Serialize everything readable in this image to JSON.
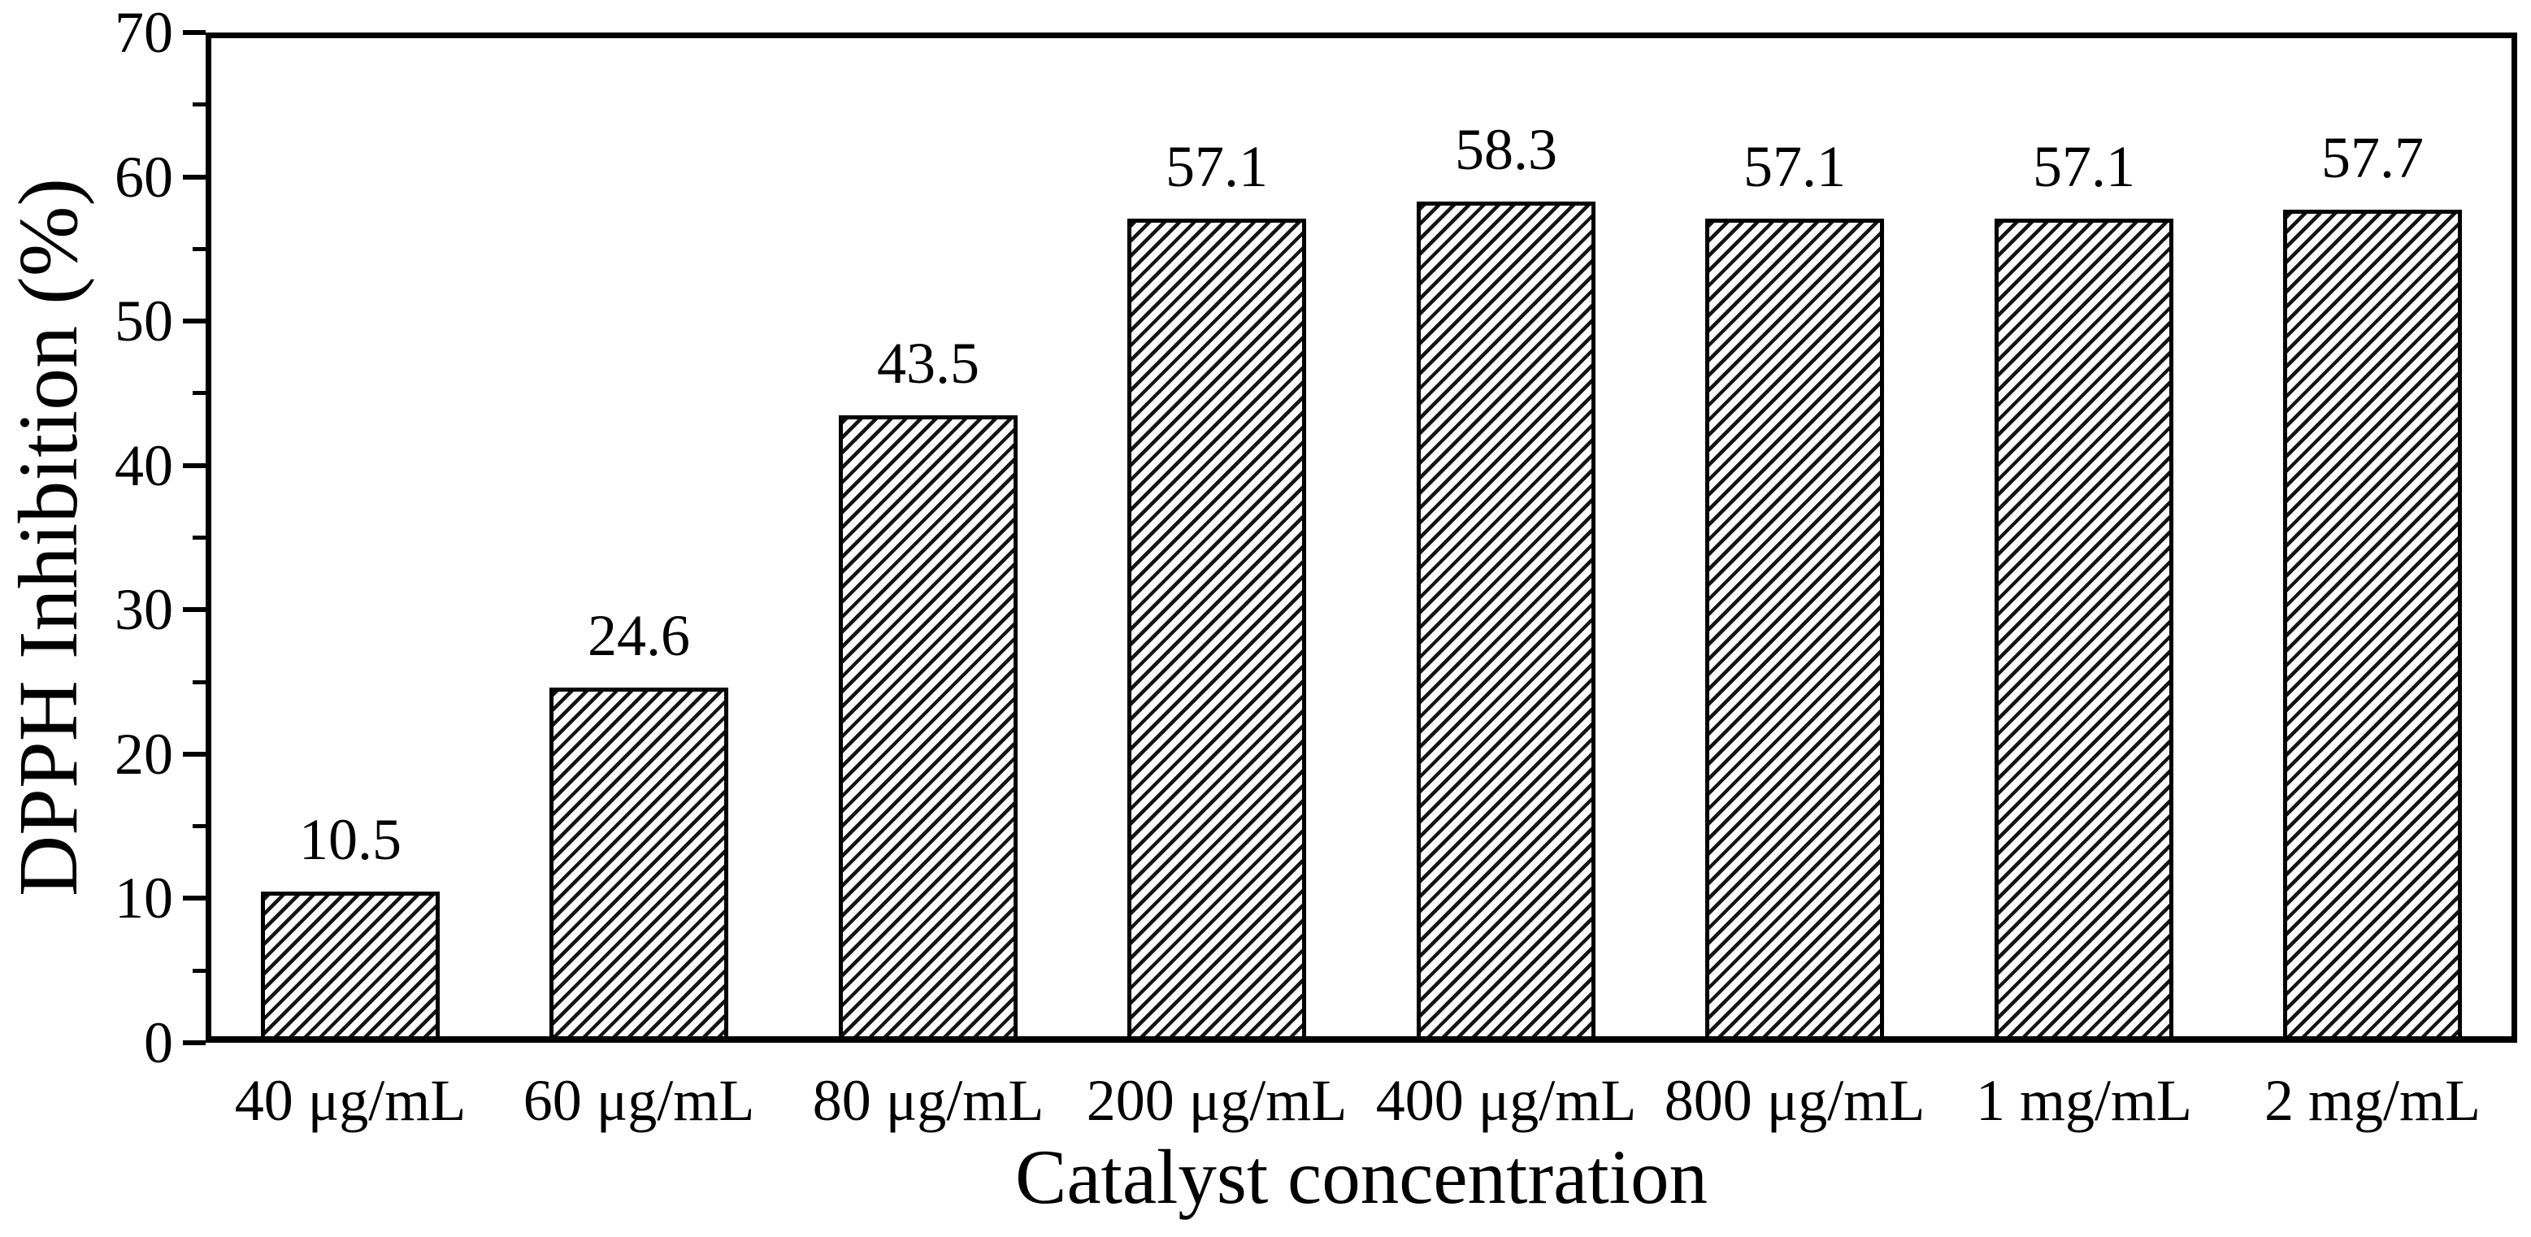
{
  "chart_data": {
    "type": "bar",
    "title": "",
    "xlabel": "Catalyst concentration",
    "ylabel": "DPPH Inhibition (%)",
    "categories": [
      "40 μg/mL",
      "60 μg/mL",
      "80 μg/mL",
      "200 μg/mL",
      "400 μg/mL",
      "800 μg/mL",
      "1 mg/mL",
      "2 mg/mL"
    ],
    "values": [
      10.5,
      24.6,
      43.5,
      57.1,
      58.3,
      57.1,
      57.1,
      57.7
    ],
    "value_labels": [
      "10.5",
      "24.6",
      "43.5",
      "57.1",
      "58.3",
      "57.1",
      "57.1",
      "57.7"
    ],
    "ylim": [
      0,
      70
    ],
    "ytick_major_step": 10,
    "ytick_minor_step": 5,
    "ytick_labels": [
      "0",
      "10",
      "20",
      "30",
      "40",
      "50",
      "60",
      "70"
    ],
    "grid": false,
    "legend": "none",
    "bar_style": {
      "fill": "#ffffff",
      "hatch": "diagonal-forward",
      "hatch_color": "#141414",
      "edge_color": "#000000"
    },
    "colors": {
      "axis": "#000000",
      "text": "#000000",
      "background": "#ffffff"
    }
  }
}
